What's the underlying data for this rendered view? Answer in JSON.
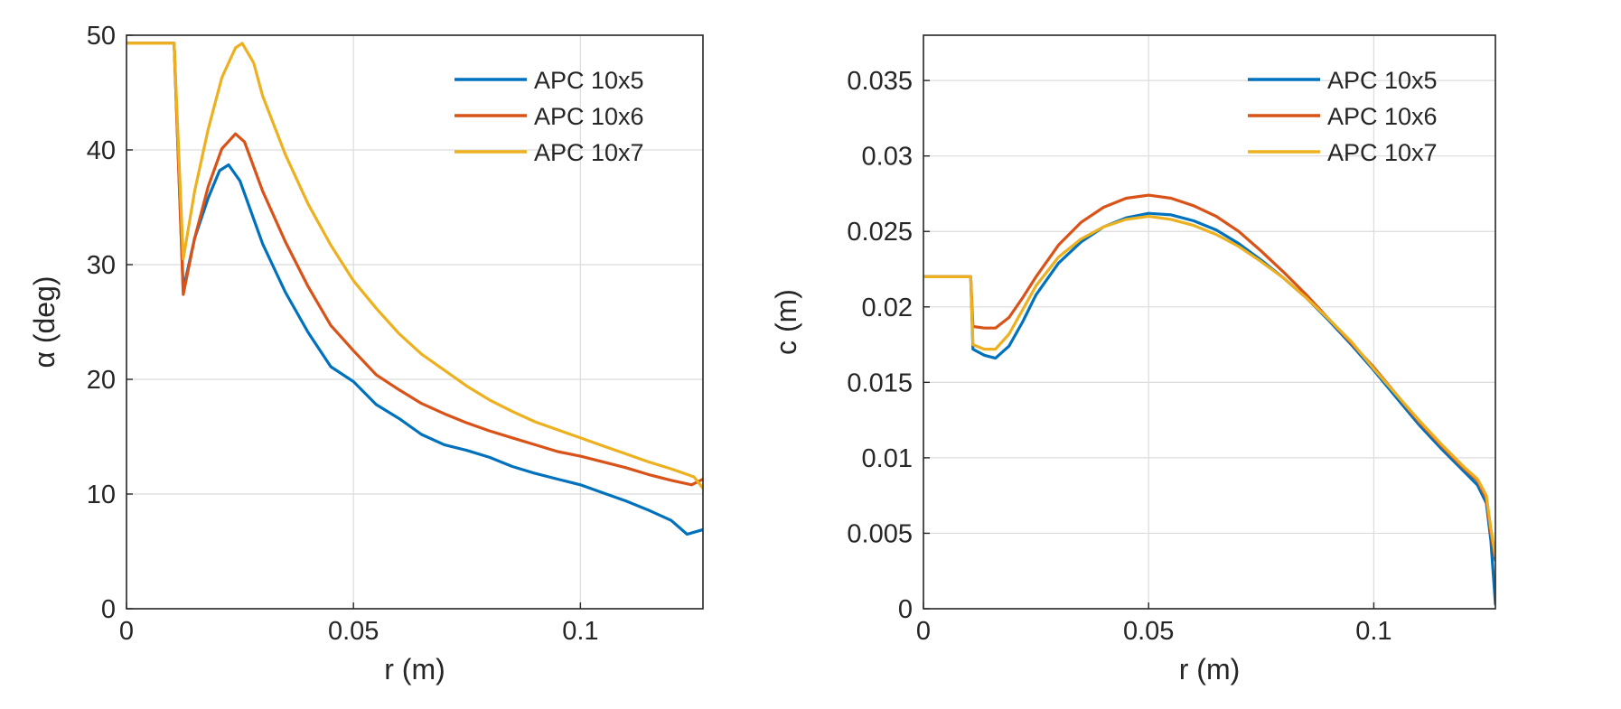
{
  "chart_data": [
    {
      "type": "line",
      "xlabel": "r (m)",
      "ylabel": "α (deg)",
      "xlim": [
        0,
        0.127
      ],
      "ylim": [
        0,
        50
      ],
      "xticks": [
        0,
        0.05,
        0.1
      ],
      "xtick_labels": [
        "0",
        "0.05",
        "0.1"
      ],
      "yticks": [
        0,
        10,
        20,
        30,
        40,
        50
      ],
      "ytick_labels": [
        "0",
        "10",
        "20",
        "30",
        "40",
        "50"
      ],
      "grid": true,
      "legend_position": "top-right",
      "series": [
        {
          "name": "APC 10x5",
          "color": "#0072BD",
          "x": [
            0,
            0.0105,
            0.0125,
            0.015,
            0.018,
            0.0205,
            0.0225,
            0.025,
            0.03,
            0.035,
            0.04,
            0.045,
            0.05,
            0.055,
            0.06,
            0.065,
            0.07,
            0.075,
            0.08,
            0.085,
            0.09,
            0.095,
            0.1,
            0.105,
            0.11,
            0.115,
            0.12,
            0.1235,
            0.127
          ],
          "y": [
            49.3,
            49.3,
            27.8,
            32.3,
            35.8,
            38.2,
            38.7,
            37.3,
            31.8,
            27.6,
            24.1,
            21.1,
            19.8,
            17.8,
            16.6,
            15.2,
            14.3,
            13.8,
            13.2,
            12.4,
            11.8,
            11.3,
            10.8,
            10.1,
            9.4,
            8.6,
            7.7,
            6.5,
            6.9
          ]
        },
        {
          "name": "APC 10x6",
          "color": "#D95319",
          "x": [
            0,
            0.0105,
            0.0125,
            0.015,
            0.018,
            0.021,
            0.024,
            0.026,
            0.03,
            0.035,
            0.04,
            0.045,
            0.05,
            0.055,
            0.06,
            0.065,
            0.07,
            0.075,
            0.08,
            0.085,
            0.09,
            0.095,
            0.1,
            0.105,
            0.11,
            0.115,
            0.12,
            0.1245,
            0.127
          ],
          "y": [
            49.3,
            49.3,
            27.4,
            32.3,
            36.8,
            40.1,
            41.4,
            40.7,
            36.4,
            32.0,
            28.1,
            24.7,
            22.5,
            20.4,
            19.1,
            17.9,
            17.0,
            16.2,
            15.5,
            14.9,
            14.3,
            13.7,
            13.3,
            12.8,
            12.3,
            11.7,
            11.2,
            10.8,
            11.3
          ]
        },
        {
          "name": "APC 10x7",
          "color": "#EDB120",
          "x": [
            0,
            0.0105,
            0.0125,
            0.015,
            0.018,
            0.021,
            0.024,
            0.0255,
            0.028,
            0.03,
            0.035,
            0.04,
            0.045,
            0.05,
            0.055,
            0.06,
            0.065,
            0.07,
            0.075,
            0.08,
            0.085,
            0.09,
            0.095,
            0.1,
            0.105,
            0.11,
            0.115,
            0.12,
            0.125,
            0.127
          ],
          "y": [
            49.3,
            49.3,
            30.5,
            36.4,
            41.8,
            46.3,
            48.9,
            49.3,
            47.6,
            44.7,
            39.6,
            35.3,
            31.7,
            28.6,
            26.2,
            24.0,
            22.2,
            20.8,
            19.4,
            18.2,
            17.2,
            16.3,
            15.6,
            14.9,
            14.2,
            13.5,
            12.8,
            12.2,
            11.5,
            10.5
          ]
        }
      ]
    },
    {
      "type": "line",
      "xlabel": "r (m)",
      "ylabel": "c (m)",
      "xlim": [
        0,
        0.127
      ],
      "ylim": [
        0,
        0.038
      ],
      "xticks": [
        0,
        0.05,
        0.1
      ],
      "xtick_labels": [
        "0",
        "0.05",
        "0.1"
      ],
      "yticks": [
        0,
        0.005,
        0.01,
        0.015,
        0.02,
        0.025,
        0.03,
        0.035
      ],
      "ytick_labels": [
        "0",
        "0.005",
        "0.01",
        "0.015",
        "0.02",
        "0.025",
        "0.03",
        "0.035"
      ],
      "grid": true,
      "legend_position": "top-right",
      "series": [
        {
          "name": "APC 10x5",
          "color": "#0072BD",
          "x": [
            0,
            0.0105,
            0.011,
            0.0135,
            0.016,
            0.019,
            0.022,
            0.025,
            0.03,
            0.035,
            0.04,
            0.045,
            0.05,
            0.055,
            0.06,
            0.065,
            0.07,
            0.075,
            0.08,
            0.085,
            0.09,
            0.095,
            0.1,
            0.105,
            0.11,
            0.115,
            0.12,
            0.123,
            0.125,
            0.126,
            0.127
          ],
          "y": [
            0.022,
            0.022,
            0.0172,
            0.0168,
            0.0166,
            0.0174,
            0.019,
            0.0208,
            0.0229,
            0.0243,
            0.0253,
            0.0259,
            0.0262,
            0.0261,
            0.0257,
            0.0251,
            0.0242,
            0.0231,
            0.0219,
            0.0206,
            0.0191,
            0.0175,
            0.0158,
            0.014,
            0.0122,
            0.0106,
            0.0091,
            0.0082,
            0.007,
            0.0045,
            0.0003
          ]
        },
        {
          "name": "APC 10x6",
          "color": "#D95319",
          "x": [
            0,
            0.0105,
            0.011,
            0.0135,
            0.016,
            0.019,
            0.022,
            0.025,
            0.03,
            0.035,
            0.04,
            0.045,
            0.05,
            0.055,
            0.06,
            0.065,
            0.07,
            0.075,
            0.08,
            0.085,
            0.09,
            0.095,
            0.1,
            0.105,
            0.11,
            0.115,
            0.12,
            0.123,
            0.125,
            0.126,
            0.127
          ],
          "y": [
            0.022,
            0.022,
            0.0187,
            0.0186,
            0.0186,
            0.0193,
            0.0206,
            0.022,
            0.0241,
            0.0256,
            0.0266,
            0.0272,
            0.0274,
            0.0272,
            0.0267,
            0.026,
            0.025,
            0.0237,
            0.0223,
            0.0208,
            0.0192,
            0.0176,
            0.016,
            0.0142,
            0.0124,
            0.0108,
            0.0093,
            0.0085,
            0.0073,
            0.005,
            0.0032
          ]
        },
        {
          "name": "APC 10x7",
          "color": "#EDB120",
          "x": [
            0,
            0.0105,
            0.011,
            0.0135,
            0.016,
            0.019,
            0.022,
            0.025,
            0.03,
            0.035,
            0.04,
            0.045,
            0.05,
            0.055,
            0.06,
            0.065,
            0.07,
            0.075,
            0.08,
            0.085,
            0.09,
            0.095,
            0.1,
            0.105,
            0.11,
            0.115,
            0.12,
            0.123,
            0.125,
            0.126,
            0.127
          ],
          "y": [
            0.022,
            0.022,
            0.0175,
            0.0172,
            0.0172,
            0.0182,
            0.0198,
            0.0214,
            0.0233,
            0.0245,
            0.0253,
            0.0258,
            0.026,
            0.0258,
            0.0254,
            0.0248,
            0.024,
            0.023,
            0.0219,
            0.0206,
            0.0192,
            0.0177,
            0.0159,
            0.0142,
            0.0125,
            0.0109,
            0.0094,
            0.0086,
            0.0075,
            0.0053,
            0.0035
          ]
        }
      ]
    }
  ]
}
